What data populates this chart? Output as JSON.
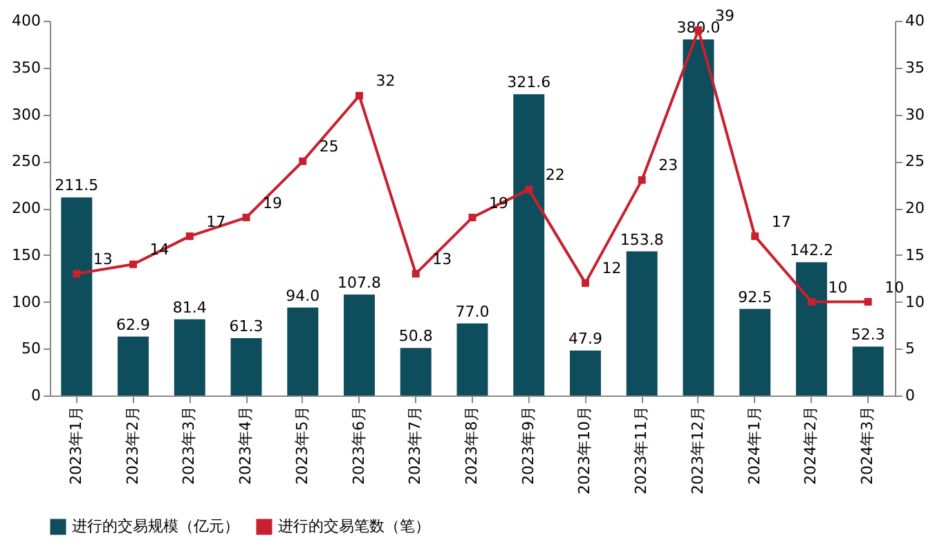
{
  "chart_data": {
    "type": "bar",
    "categories": [
      "2023年1月",
      "2023年2月",
      "2023年3月",
      "2023年4月",
      "2023年5月",
      "2023年6月",
      "2023年7月",
      "2023年8月",
      "2023年9月",
      "2023年10月",
      "2023年11月",
      "2023年12月",
      "2024年1月",
      "2024年2月",
      "2024年3月"
    ],
    "series": [
      {
        "name": "进行的交易规模（亿元）",
        "color": "#0e4d5c",
        "values": [
          211.5,
          62.9,
          81.4,
          61.3,
          94.0,
          107.8,
          50.8,
          77.0,
          321.6,
          47.9,
          153.8,
          380.0,
          92.5,
          142.2,
          52.3
        ],
        "value_labels": [
          "211.5",
          "62.9",
          "81.4",
          "61.3",
          "94.0",
          "107.8",
          "50.8",
          "77.0",
          "321.6",
          "47.9",
          "153.8",
          "380.0",
          "92.5",
          "142.2",
          "52.3"
        ]
      },
      {
        "name": "进行的交易笔数（笔）",
        "type": "line",
        "axis": "y2",
        "color": "#c8202f",
        "marker": "square",
        "values": [
          13,
          14,
          17,
          19,
          25,
          32,
          13,
          19,
          22,
          12,
          23,
          39,
          17,
          10,
          10
        ],
        "value_labels": [
          "13",
          "14",
          "17",
          "19",
          "25",
          "32",
          "13",
          "19",
          "22",
          "12",
          "23",
          "39",
          "17",
          "10",
          "10"
        ]
      }
    ],
    "ylim": [
      0,
      400
    ],
    "yticks": [
      0,
      50,
      100,
      150,
      200,
      250,
      300,
      350,
      400
    ],
    "y2lim": [
      0,
      40
    ],
    "y2ticks": [
      0,
      5,
      10,
      15,
      20,
      25,
      30,
      35,
      40
    ],
    "grid": false,
    "legend": "bottom"
  }
}
